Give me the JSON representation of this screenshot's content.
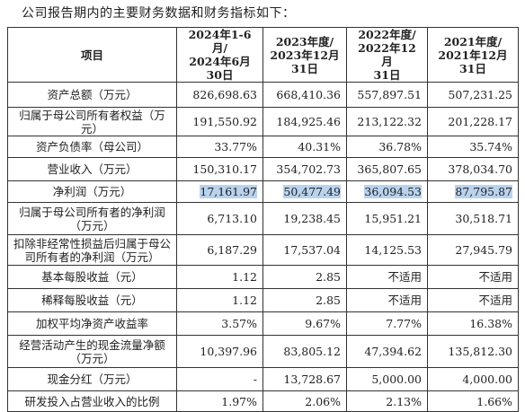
{
  "intro": "公司报告期内的主要财务数据和财务指标如下：",
  "table": {
    "header": [
      [
        "项目"
      ],
      [
        "2024年1-6月/",
        "2024年6月30日"
      ],
      [
        "2023年度/",
        "2023年12月",
        "31日"
      ],
      [
        "2022年度/",
        "2022年12月",
        "31日"
      ],
      [
        "2021年度/",
        "2021年12月",
        "31日"
      ]
    ],
    "rows": [
      [
        "资产总额（万元）",
        "826,698.63",
        "668,410.36",
        "557,897.51",
        "507,231.25"
      ],
      [
        "归属于母公司所有者权益（万元）",
        "191,550.92",
        "184,925.46",
        "213,122.32",
        "201,228.17"
      ],
      [
        "资产负债率（母公司）",
        "33.77%",
        "40.31%",
        "36.78%",
        "35.74%"
      ],
      [
        "营业收入（万元）",
        "150,310.17",
        "354,702.73",
        "365,807.65",
        "378,034.70"
      ],
      [
        "净利润（万元）",
        "17,161.97",
        "50,477.49",
        "36,094.53",
        "87,795.87"
      ],
      [
        "归属于母公司所有者的净利润（万元）",
        "6,713.10",
        "19,238.45",
        "15,951.21",
        "30,518.71"
      ],
      [
        "扣除非经常性损益后归属于母公司所有者的净利润（万元）",
        "6,187.29",
        "17,537.04",
        "14,125.53",
        "27,945.79"
      ],
      [
        "基本每股收益（元）",
        "1.12",
        "2.85",
        "不适用",
        "不适用"
      ],
      [
        "稀释每股收益（元）",
        "1.12",
        "2.85",
        "不适用",
        "不适用"
      ],
      [
        "加权平均净资产收益率",
        "3.57%",
        "9.67%",
        "7.77%",
        "16.38%"
      ],
      [
        "经营活动产生的现金流量净额（万元）",
        "10,397.96",
        "83,805.12",
        "47,394.62",
        "135,812.30"
      ],
      [
        "现金分红（万元）",
        "-",
        "13,728.67",
        "5,000.00",
        "4,000.00"
      ],
      [
        "研发投入占营业收入的比例",
        "1.97%",
        "2.06%",
        "2.13%",
        "1.66%"
      ]
    ]
  }
}
